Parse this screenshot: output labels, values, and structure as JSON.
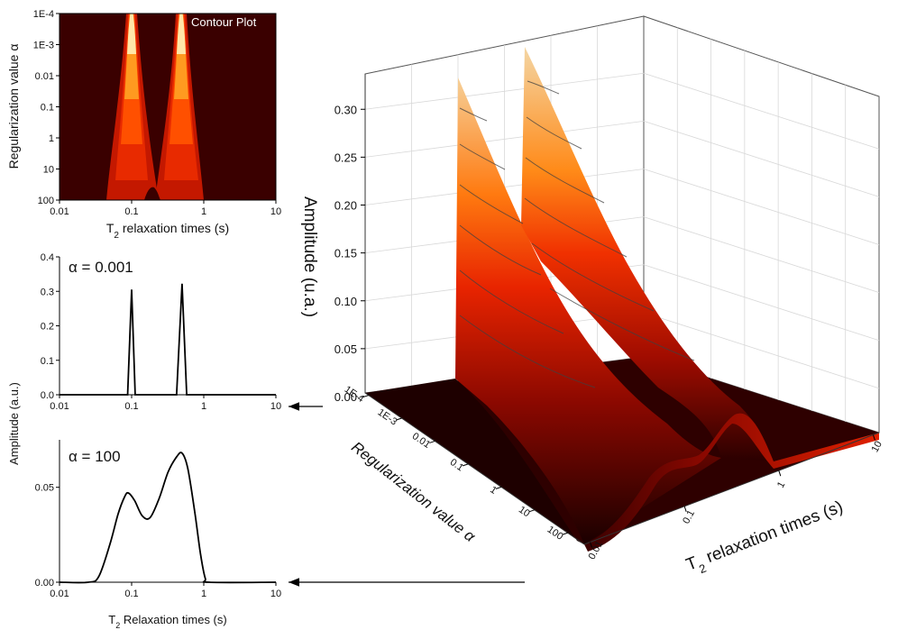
{
  "chart_data": [
    {
      "type": "heatmap",
      "title": "Contour Plot",
      "xlabel": "T2 relaxation times (s)",
      "xlabel_main": "T",
      "xlabel_sub": "2",
      "xlabel_rest": " relaxation times (s)",
      "ylabel": "Regularization value α",
      "x_ticks": [
        "0.01",
        "0.1",
        "1",
        "10"
      ],
      "y_ticks": [
        "1E-4",
        "1E-3",
        "0.01",
        "0.1",
        "1",
        "10",
        "100"
      ],
      "peaks_T2": [
        0.1,
        0.5
      ],
      "colormap": [
        "#3a0000",
        "#7a0a00",
        "#c81a00",
        "#ff3a00",
        "#ff8a10",
        "#ffe6a8"
      ]
    },
    {
      "type": "line",
      "annotation": "α = 0.001",
      "x_ticks": [
        "0.01",
        "0.1",
        "1",
        "10"
      ],
      "y_ticks": [
        "0.0",
        "0.1",
        "0.2",
        "0.3",
        "0.4"
      ],
      "xlim": [
        0.01,
        10
      ],
      "ylim": [
        0,
        0.4
      ],
      "x": [
        0.01,
        0.088,
        0.1,
        0.112,
        0.42,
        0.5,
        0.58,
        10
      ],
      "y": [
        0,
        0,
        0.305,
        0,
        0,
        0.322,
        0,
        0
      ]
    },
    {
      "type": "line",
      "annotation": "α = 100",
      "ylabel": "Amplitude (a.u.)",
      "xlabel": "T2 Relaxation times (s)",
      "xlabel_main": "T",
      "xlabel_sub": "2",
      "xlabel_rest": " Relaxation times (s)",
      "x_ticks": [
        "0.01",
        "0.1",
        "1",
        "10"
      ],
      "y_ticks": [
        "0.00",
        "0.05"
      ],
      "xlim": [
        0.01,
        10
      ],
      "ylim": [
        0,
        0.075
      ],
      "x": [
        0.01,
        0.025,
        0.035,
        0.05,
        0.065,
        0.08,
        0.09,
        0.11,
        0.14,
        0.18,
        0.24,
        0.32,
        0.42,
        0.5,
        0.6,
        0.75,
        0.9,
        1.05,
        1.2,
        10
      ],
      "y": [
        0,
        0,
        0.003,
        0.02,
        0.036,
        0.045,
        0.047,
        0.043,
        0.035,
        0.034,
        0.044,
        0.058,
        0.066,
        0.068,
        0.06,
        0.037,
        0.015,
        0.002,
        0,
        0
      ]
    },
    {
      "type": "surface",
      "zlabel": "Amplitude (u.a.)",
      "xlabel": "T2 relaxation times (s)",
      "xlabel_main": "T",
      "xlabel_sub": "2",
      "xlabel_rest": " relaxation times (s)",
      "ylabel": "Regularization value α",
      "z_ticks": [
        "0.00",
        "0.05",
        "0.10",
        "0.15",
        "0.20",
        "0.25",
        "0.30"
      ],
      "zlim": [
        0,
        0.32
      ],
      "x_ticks": [
        "0.01",
        "0.1",
        "1",
        "10"
      ],
      "y_ticks": [
        "1E-4",
        "1E-3",
        "0.01",
        "0.1",
        "1",
        "10",
        "100"
      ]
    }
  ]
}
